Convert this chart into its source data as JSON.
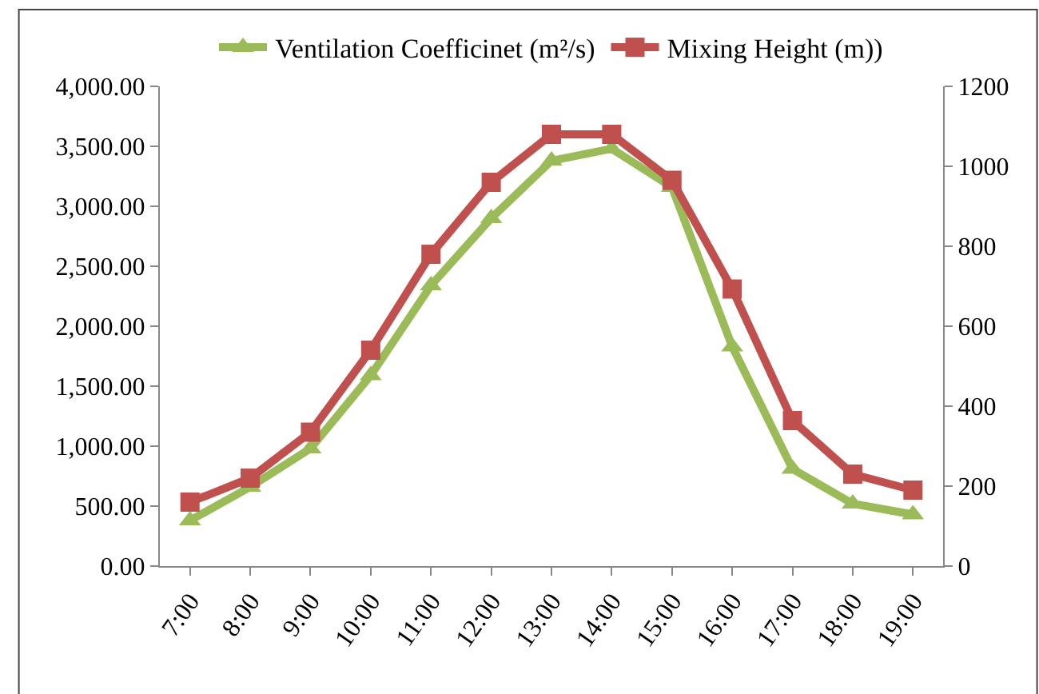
{
  "chart_data": {
    "type": "line",
    "categories": [
      "7:00",
      "8:00",
      "9:00",
      "10:00",
      "11:00",
      "12:00",
      "13:00",
      "14:00",
      "15:00",
      "16:00",
      "17:00",
      "18:00",
      "19:00"
    ],
    "series": [
      {
        "name": "Ventilation Coefficinet (m²/s)",
        "color": "#9bbb59",
        "marker": "triangle",
        "values": [
          380,
          660,
          980,
          1590,
          2340,
          2900,
          3380,
          3480,
          3160,
          1830,
          810,
          520,
          430
        ]
      },
      {
        "name": "Mixing Height (m))",
        "color": "#c0504d",
        "marker": "square",
        "axis": "y2",
        "values": [
          160,
          220,
          335,
          540,
          780,
          960,
          1080,
          1080,
          965,
          693,
          364,
          230,
          190
        ]
      }
    ],
    "ylim": [
      0,
      4000
    ],
    "yticks": [
      {
        "value": 0,
        "label": "0.00"
      },
      {
        "value": 500,
        "label": "500.00"
      },
      {
        "value": 1000,
        "label": "1,000.00"
      },
      {
        "value": 1500,
        "label": "1,500.00"
      },
      {
        "value": 2000,
        "label": "2,000.00"
      },
      {
        "value": 2500,
        "label": "2,500.00"
      },
      {
        "value": 3000,
        "label": "3,000.00"
      },
      {
        "value": 3500,
        "label": "3,500.00"
      },
      {
        "value": 4000,
        "label": "4,000.00"
      }
    ],
    "y2lim": [
      0,
      1200
    ],
    "y2ticks": [
      0,
      200,
      400,
      600,
      800,
      1000,
      1200
    ],
    "legend": "top"
  }
}
